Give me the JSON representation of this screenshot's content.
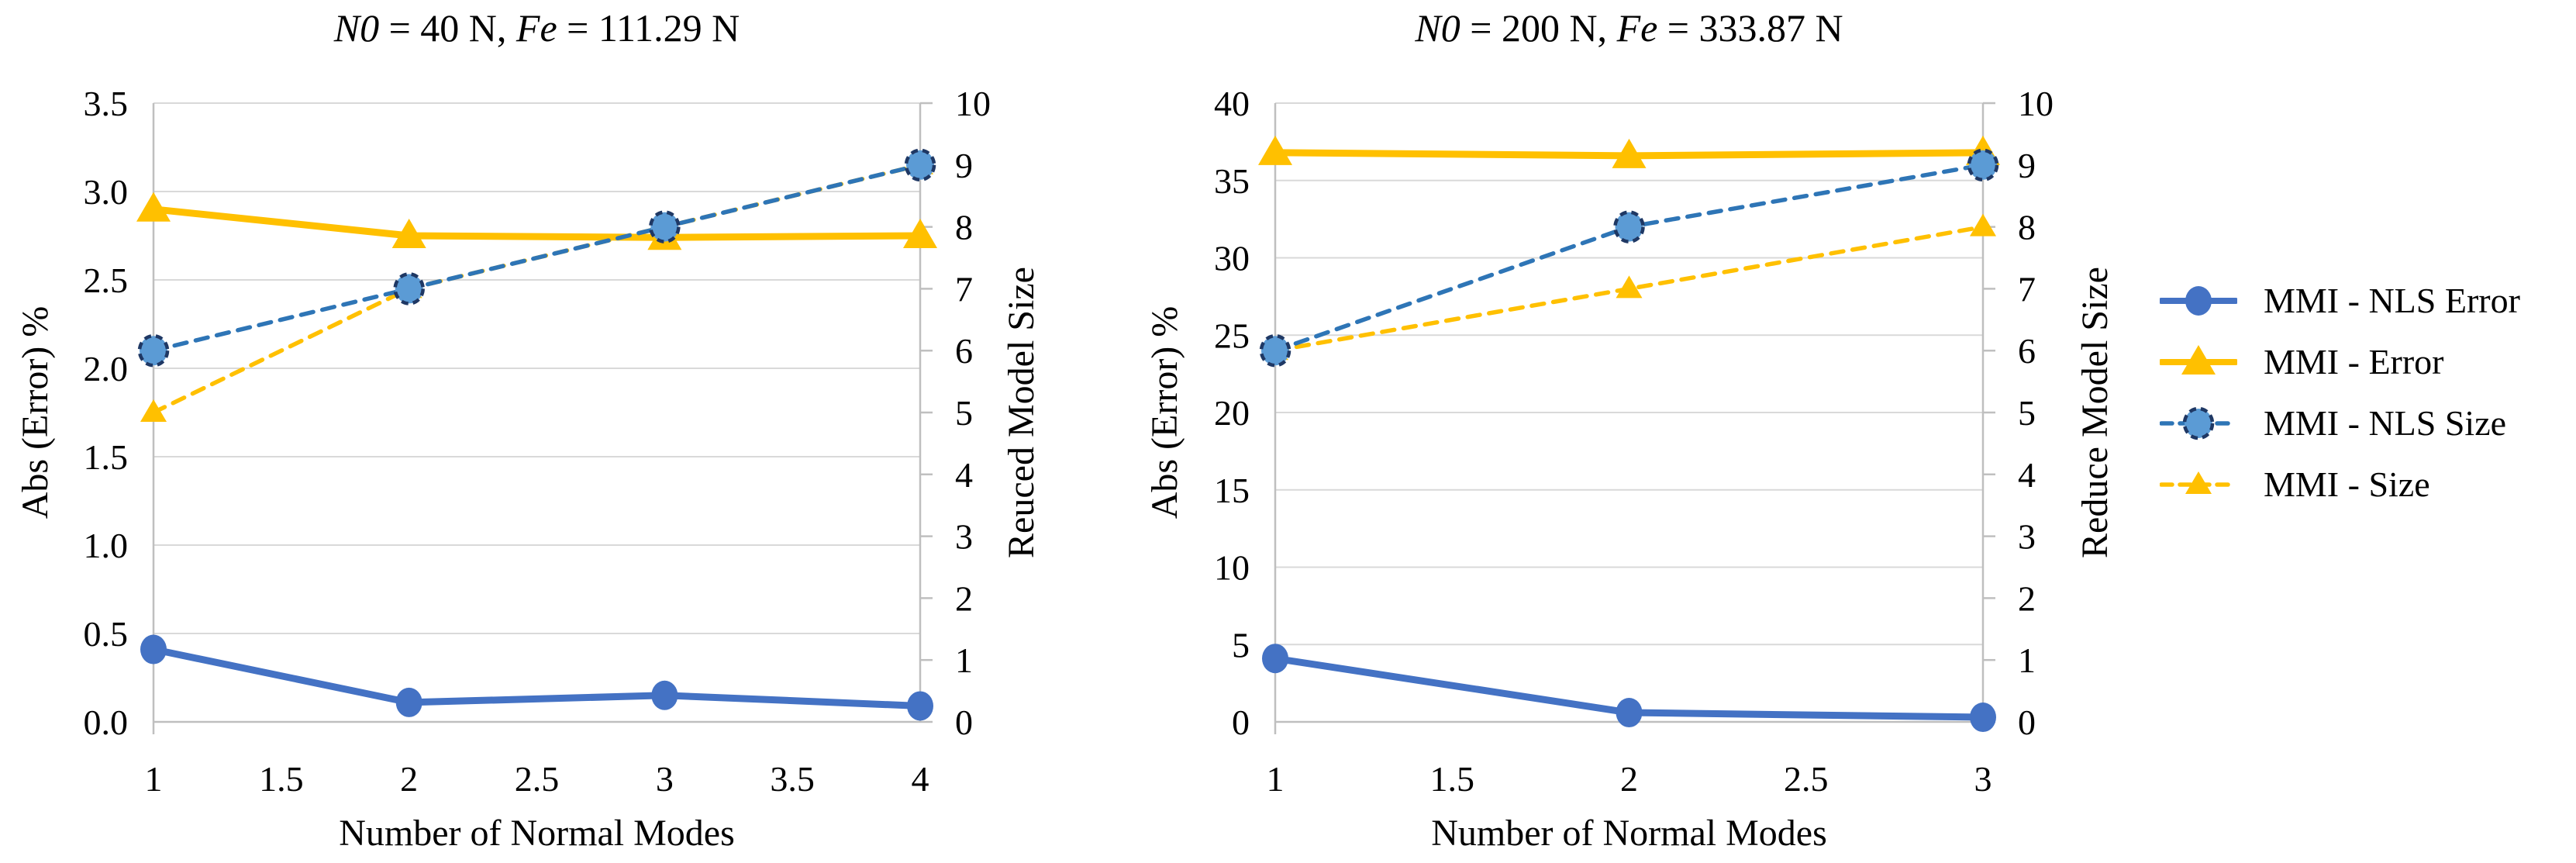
{
  "figure": {
    "background": "#ffffff",
    "description": "Two Excel-style dual-axis line charts comparing error and reduced model size versus number of normal modes, with a shared legend on the right."
  },
  "colors": {
    "blue_solid": "#4472C4",
    "blue_dashed_line": "#2E75B6",
    "blue_dashed_marker_fill": "#5B9BD5",
    "blue_dashed_marker_stroke": "#1F3864",
    "orange": "#FFC000",
    "gridline": "#D9D9D9",
    "axis_line": "#BFBFBF",
    "text": "#000000"
  },
  "legend": {
    "position": "right",
    "items": [
      {
        "label": "MMI - NLS Error",
        "marker": "circle",
        "line": "solid",
        "color": "#4472C4",
        "marker_fill": "#4472C4"
      },
      {
        "label": "MMI - Error",
        "marker": "triangle",
        "line": "solid",
        "color": "#FFC000",
        "marker_fill": "#FFC000"
      },
      {
        "label": "MMI - NLS Size",
        "marker": "circle-dashed",
        "line": "dashed",
        "color": "#2E75B6",
        "marker_fill": "#5B9BD5",
        "marker_stroke": "#1F3864"
      },
      {
        "label": "MMI - Size",
        "marker": "triangle-dashed",
        "line": "dashed",
        "color": "#FFC000",
        "marker_fill": "#FFC000"
      }
    ]
  },
  "chart_data": [
    {
      "type": "line",
      "title": {
        "plain": "N0 = 40 N, Fe = 111.29 N",
        "segments": [
          {
            "text": "N0",
            "italic": true
          },
          {
            "text": " = 40 N, ",
            "italic": false
          },
          {
            "text": "Fe",
            "italic": true
          },
          {
            "text": " = 111.29 N",
            "italic": false
          }
        ]
      },
      "xlabel": "Number of Normal Modes",
      "ylabel_left": "Abs (Error) %",
      "ylabel_right": "Reuced Model Size",
      "xlim": [
        1,
        4
      ],
      "x_ticks": {
        "values": [
          1,
          1.5,
          2,
          2.5,
          3,
          3.5,
          4
        ],
        "labels": [
          "1",
          "1.5",
          "2",
          "2.5",
          "3",
          "3.5",
          "4"
        ]
      },
      "ylim_left": [
        0,
        3.5
      ],
      "yticks_left": {
        "values": [
          0,
          0.5,
          1,
          1.5,
          2,
          2.5,
          3,
          3.5
        ],
        "labels": [
          "0.0",
          "0.5",
          "1.0",
          "1.5",
          "2.0",
          "2.5",
          "3.0",
          "3.5"
        ]
      },
      "ylim_right": [
        0,
        10
      ],
      "yticks_right": {
        "values": [
          0,
          1,
          2,
          3,
          4,
          5,
          6,
          7,
          8,
          9,
          10
        ],
        "labels": [
          "0",
          "1",
          "2",
          "3",
          "4",
          "5",
          "6",
          "7",
          "8",
          "9",
          "10"
        ]
      },
      "grid": "horizontal gridlines at left-axis ticks",
      "x": [
        1,
        2,
        3,
        4
      ],
      "series": [
        {
          "name": "MMI - Error",
          "axis": "left",
          "line": "solid",
          "marker": "triangle",
          "color": "#FFC000",
          "marker_fill": "#FFC000",
          "values": [
            2.9,
            2.75,
            2.74,
            2.75
          ]
        },
        {
          "name": "MMI - Size",
          "axis": "right",
          "line": "dashed",
          "marker": "triangle-dashed",
          "color": "#FFC000",
          "marker_fill": "#FFC000",
          "values": [
            5,
            7,
            8,
            9
          ]
        },
        {
          "name": "MMI - NLS Size",
          "axis": "right",
          "line": "dashed",
          "marker": "circle-dashed",
          "color": "#2E75B6",
          "marker_fill": "#5B9BD5",
          "marker_stroke": "#1F3864",
          "values": [
            6,
            7,
            8,
            9
          ]
        },
        {
          "name": "MMI - NLS Error",
          "axis": "left",
          "line": "solid",
          "marker": "circle",
          "color": "#4472C4",
          "marker_fill": "#4472C4",
          "values": [
            0.41,
            0.11,
            0.15,
            0.09
          ]
        }
      ]
    },
    {
      "type": "line",
      "title": {
        "plain": "N0 = 200 N, Fe = 333.87 N",
        "segments": [
          {
            "text": "N0",
            "italic": true
          },
          {
            "text": " = 200 N, ",
            "italic": false
          },
          {
            "text": "Fe",
            "italic": true
          },
          {
            "text": " = 333.87 N",
            "italic": false
          }
        ]
      },
      "xlabel": "Number of Normal Modes",
      "ylabel_left": "Abs (Error) %",
      "ylabel_right": "Reduce Model Size",
      "xlim": [
        1,
        3
      ],
      "x_ticks": {
        "values": [
          1,
          1.5,
          2,
          2.5,
          3
        ],
        "labels": [
          "1",
          "1.5",
          "2",
          "2.5",
          "3"
        ]
      },
      "ylim_left": [
        0,
        40
      ],
      "yticks_left": {
        "values": [
          0,
          5,
          10,
          15,
          20,
          25,
          30,
          35,
          40
        ],
        "labels": [
          "0",
          "5",
          "10",
          "15",
          "20",
          "25",
          "30",
          "35",
          "40"
        ]
      },
      "ylim_right": [
        0,
        10
      ],
      "yticks_right": {
        "values": [
          0,
          1,
          2,
          3,
          4,
          5,
          6,
          7,
          8,
          9,
          10
        ],
        "labels": [
          "0",
          "1",
          "2",
          "3",
          "4",
          "5",
          "6",
          "7",
          "8",
          "9",
          "10"
        ]
      },
      "grid": "horizontal gridlines at left-axis ticks",
      "x": [
        1,
        2,
        3
      ],
      "series": [
        {
          "name": "MMI - Error",
          "axis": "left",
          "line": "solid",
          "marker": "triangle",
          "color": "#FFC000",
          "marker_fill": "#FFC000",
          "values": [
            36.8,
            36.6,
            36.8
          ]
        },
        {
          "name": "MMI - Size",
          "axis": "right",
          "line": "dashed",
          "marker": "triangle-dashed",
          "color": "#FFC000",
          "marker_fill": "#FFC000",
          "values": [
            6,
            7,
            8
          ]
        },
        {
          "name": "MMI - NLS Size",
          "axis": "right",
          "line": "dashed",
          "marker": "circle-dashed",
          "color": "#2E75B6",
          "marker_fill": "#5B9BD5",
          "marker_stroke": "#1F3864",
          "values": [
            6,
            8,
            9
          ]
        },
        {
          "name": "MMI - NLS Error",
          "axis": "left",
          "line": "solid",
          "marker": "circle",
          "color": "#4472C4",
          "marker_fill": "#4472C4",
          "values": [
            4.1,
            0.6,
            0.3
          ]
        }
      ]
    }
  ]
}
